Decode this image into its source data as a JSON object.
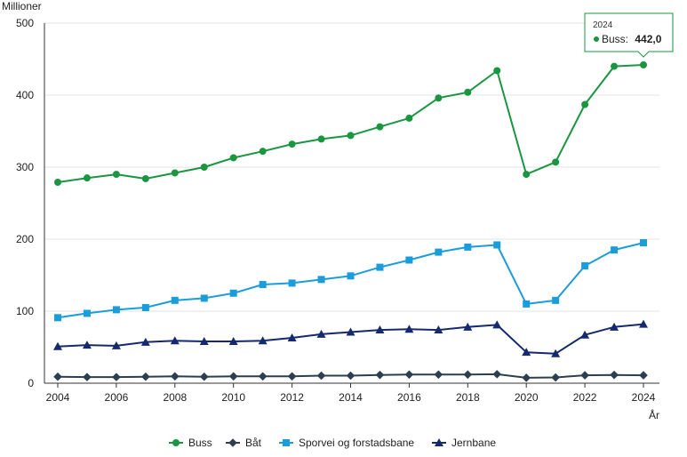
{
  "chart_data": {
    "type": "line",
    "ylabel": "Millioner",
    "xlabel": "År",
    "ylim": [
      0,
      500
    ],
    "yticks": [
      0,
      100,
      200,
      300,
      400,
      500
    ],
    "xticks": [
      2004,
      2006,
      2008,
      2010,
      2012,
      2014,
      2016,
      2018,
      2020,
      2022,
      2024
    ],
    "grid": "horizontal",
    "legend_position": "bottom",
    "x": [
      2004,
      2005,
      2006,
      2007,
      2008,
      2009,
      2010,
      2011,
      2012,
      2013,
      2014,
      2015,
      2016,
      2017,
      2018,
      2019,
      2020,
      2021,
      2022,
      2023,
      2024
    ],
    "series": [
      {
        "name": "Buss",
        "color": "#1a9641",
        "marker": "circle",
        "values": [
          279,
          285,
          290,
          284,
          292,
          300,
          313,
          322,
          332,
          339,
          344,
          356,
          368,
          396,
          404,
          434,
          290,
          307,
          387,
          440,
          442
        ]
      },
      {
        "name": "Båt",
        "color": "#2c3e50",
        "marker": "diamond",
        "values": [
          9,
          8.5,
          8.5,
          9,
          9.5,
          9,
          9.5,
          9.5,
          9.5,
          10.5,
          10.5,
          11.5,
          12,
          12,
          12,
          12.5,
          7.5,
          8,
          11,
          11.5,
          11
        ]
      },
      {
        "name": "Sporvei og forstadsbane",
        "color": "#1b9ddb",
        "marker": "square",
        "values": [
          91,
          97,
          102,
          105,
          115,
          118,
          125,
          137,
          139,
          144,
          149,
          161,
          171,
          182,
          189,
          192,
          110,
          115,
          163,
          185,
          195
        ]
      },
      {
        "name": "Jernbane",
        "color": "#152a6e",
        "marker": "triangle",
        "values": [
          51,
          53,
          52,
          57,
          59,
          58,
          58,
          59,
          63,
          68,
          71,
          74,
          75,
          74,
          78,
          81,
          43,
          41,
          67,
          78,
          82
        ]
      }
    ],
    "tooltip": {
      "year": "2024",
      "label": "Buss:",
      "value": "442,0",
      "color": "#1a9641"
    }
  }
}
